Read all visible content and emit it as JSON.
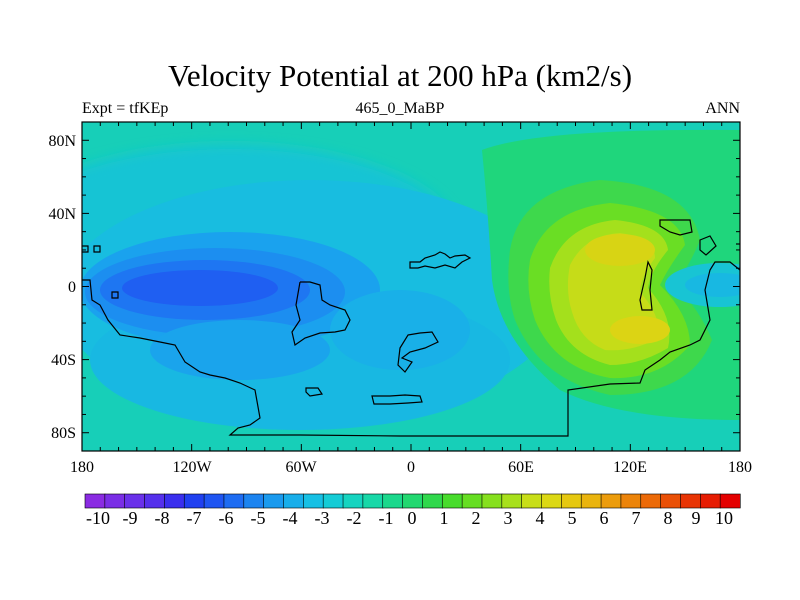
{
  "title": "Velocity Potential at 200 hPa (km2/s)",
  "subtitle_left": "Expt = tfKEp",
  "subtitle_center": "465_0_MaBP",
  "subtitle_right": "ANN",
  "map": {
    "projection": "cylindrical equidistant",
    "lon_range": [
      -180,
      180
    ],
    "lat_range": [
      -90,
      90
    ],
    "x_ticks": [
      "180",
      "120W",
      "60W",
      "0",
      "60E",
      "120E",
      "180"
    ],
    "y_ticks": [
      "80N",
      "40N",
      "0",
      "40S",
      "80S"
    ],
    "features": [
      {
        "name": "velocity potential minimum (divergence aloft)",
        "center": "~130W, 0",
        "value_approx": -6
      },
      {
        "name": "secondary negative lobe",
        "center": "~100W, 40S",
        "value_approx": -3
      },
      {
        "name": "velocity potential maximum (convergence aloft)",
        "center": "~120E, 25S",
        "value_approx": 5
      },
      {
        "name": "positive lobe",
        "center": "~110E, 25N",
        "value_approx": 4
      }
    ]
  },
  "colorbar": {
    "labels": [
      "-10",
      "-9",
      "-8",
      "-7",
      "-6",
      "-5",
      "-4",
      "-3",
      "-2",
      "-1",
      "0",
      "1",
      "2",
      "3",
      "4",
      "5",
      "6",
      "7",
      "8",
      "9",
      "10"
    ],
    "colors": [
      "#8a2be2",
      "#7a2ee6",
      "#6a31ea",
      "#5530ec",
      "#3a2fee",
      "#2040f0",
      "#1f55f2",
      "#1e6cf2",
      "#1c84f0",
      "#1a9aee",
      "#18aeea",
      "#16c0e4",
      "#15ccd6",
      "#16d4c0",
      "#18d8a8",
      "#1bd88c",
      "#22d870",
      "#30d84c",
      "#48dc2c",
      "#66de22",
      "#86e01e",
      "#a8e01c",
      "#c8de18",
      "#dcd814",
      "#e6c810",
      "#eab40e",
      "#ec9c0c",
      "#ec840a",
      "#ec6a08",
      "#ea5006",
      "#e83404",
      "#e61c02",
      "#e40000"
    ]
  },
  "colors": {
    "background": "#ffffff",
    "coast": "#000000"
  }
}
